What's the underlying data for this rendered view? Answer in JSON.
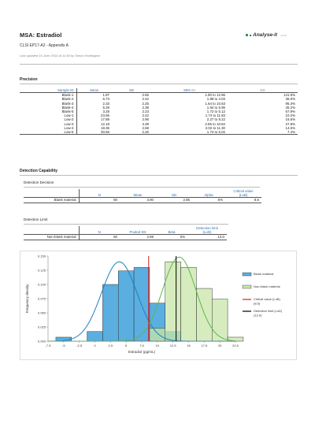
{
  "header": {
    "title": "MSA: Estradiol",
    "subtitle": "CLSI EP17-A2 - Appendix A",
    "updated": "Last updated 16 June 2016 at 11:49 by Simon Huntington",
    "logo_text": "Analyse-it",
    "logo_version": "v4.00",
    "logo_colors": [
      "#2e9c3f",
      "#2e6fb5",
      "#888888"
    ]
  },
  "precision": {
    "heading": "Precision",
    "columns": [
      "Sample ID",
      "Mean",
      "SD",
      "95% CI",
      "CV"
    ],
    "rows": [
      [
        "Blank-1",
        "1.87",
        "2.65",
        "1.90 to 12.96",
        "141.9%"
      ],
      [
        "Blank-2",
        "6.73",
        "2.42",
        "1.88 to 4.03",
        "36.0%"
      ],
      [
        "Blank-3",
        "2.33",
        "2.25",
        "1.64 to 10.63",
        "96.3%"
      ],
      [
        "Blank-4",
        "5.28",
        "2.38",
        "1.84 to 5.96",
        "45.2%"
      ],
      [
        "Blank-5",
        "3.28",
        "2.23",
        "1.72 to 5.12",
        "67.9%"
      ],
      [
        "Low-1",
        "23.66",
        "2.42",
        "1.74 to 11.83",
        "10.2%"
      ],
      [
        "Low-2",
        "17.88",
        "2.96",
        "2.27 to 8.22",
        "16.6%"
      ],
      [
        "Low-3",
        "12.18",
        "3.39",
        "2.55 to 10.84",
        "27.8%"
      ],
      [
        "Low-4",
        "18.36",
        "2.68",
        "2.02 to 11.30",
        "14.6%"
      ],
      [
        "Low-5",
        "30.56",
        "2.26",
        "1.74 to 6.02",
        "7.4%"
      ]
    ]
  },
  "detection": {
    "heading": "Detection Capability",
    "decision": {
      "heading": "Detection Decision",
      "columns": [
        "N",
        "Mean",
        "SD",
        "Alpha",
        "Critical value",
        "(LoB)"
      ],
      "row": [
        "Blank material",
        "60",
        "3.90",
        "2.85",
        "5%",
        "8.6"
      ]
    },
    "limit": {
      "heading": "Detection Limit",
      "columns": [
        "N",
        "Pooled SD",
        "Beta",
        "Detection limit",
        "(LoD)"
      ],
      "row": [
        "Non-blank material",
        "60",
        "2.69",
        "5%",
        "13.0"
      ]
    }
  },
  "chart_data": {
    "type": "histogram",
    "xlabel": "Estradiol (pg/mL)",
    "ylabel": "Frequency density",
    "xlim": [
      -7.5,
      22.5
    ],
    "ylim": [
      0,
      0.15
    ],
    "x_ticks": [
      "-7.5",
      "-5",
      "-2.5",
      "0",
      "2.5",
      "5",
      "7.5",
      "10",
      "12.5",
      "15",
      "17.5",
      "20",
      "22.5"
    ],
    "y_ticks": [
      "0.000",
      "0.025",
      "0.050",
      "0.075",
      "0.100",
      "0.125",
      "0.150"
    ],
    "bin_width": 2.5,
    "series": [
      {
        "name": "Blank material",
        "color": "#5aaee0",
        "bins": [
          [
            -5,
            0.007
          ],
          [
            0,
            0.017
          ],
          [
            2.5,
            0.1
          ],
          [
            5,
            0.124
          ],
          [
            7.5,
            0.13
          ],
          [
            10,
            0.067
          ],
          [
            12.5,
            0.017
          ]
        ]
      },
      {
        "name": "Non-blank material",
        "color": "#c8e6a8",
        "bins": [
          [
            10,
            0.023
          ],
          [
            12.5,
            0.14
          ],
          [
            15,
            0.13
          ],
          [
            17.5,
            0.093
          ],
          [
            20,
            0.074
          ],
          [
            22.5,
            0.007
          ]
        ]
      }
    ],
    "curves": [
      {
        "color": "#1f7fc4",
        "mean": 3.9,
        "sd": 2.85
      },
      {
        "color": "#5cb84a",
        "mean": 13.5,
        "sd": 2.69
      }
    ],
    "lines": [
      {
        "name": "Critical value (LoB)",
        "label_value": "(8.6)",
        "x": 8.6,
        "color": "#d62020"
      },
      {
        "name": "Detection limit (LoD)",
        "label_value": "(13.0)",
        "x": 13.0,
        "color": "#000000"
      }
    ]
  }
}
